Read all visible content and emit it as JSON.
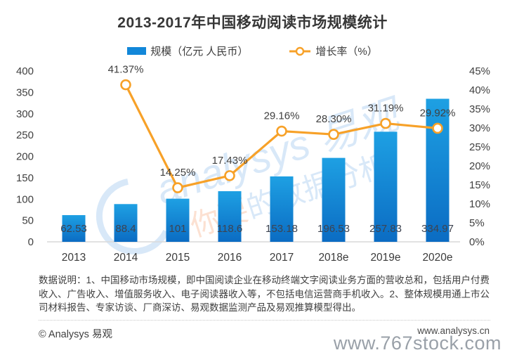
{
  "title": "2013-2017年中国移动阅读市场规模统计",
  "legend": {
    "bar_label": "规模（亿元 人民币）",
    "line_label": "增长率（%）"
  },
  "colors": {
    "bar_top": "#1EA0E3",
    "bar_bottom": "#0B6CC3",
    "legend_bar": "#1287d9",
    "line": "#F7A128",
    "marker_fill": "#FFFFFF",
    "label_text": "#404040",
    "baseline": "#d9d9d9",
    "watermark_blue": "rgba(168,203,239,0.45)",
    "watermark_orange": "rgba(247,184,148,0.42)"
  },
  "chart_data": {
    "type": "bar",
    "title": "2013-2017年中国移动阅读市场规模统计",
    "categories": [
      "2013",
      "2014",
      "2015",
      "2016",
      "2017",
      "2018e",
      "2019e",
      "2020e"
    ],
    "series": [
      {
        "name": "规模（亿元 人民币）",
        "type": "bar",
        "values": [
          62.53,
          88.4,
          101,
          118.6,
          153.18,
          196.53,
          257.83,
          334.97
        ]
      },
      {
        "name": "增长率（%）",
        "type": "line",
        "values": [
          null,
          41.37,
          14.25,
          17.43,
          29.16,
          28.3,
          31.19,
          29.92
        ]
      }
    ],
    "bar_labels": [
      "62.53",
      "88.4",
      "101",
      "118.6",
      "153.18",
      "196.53",
      "257.83",
      "334.97"
    ],
    "line_labels": [
      null,
      "41.37%",
      "14.25%",
      "17.43%",
      "29.16%",
      "28.30%",
      "31.19%",
      "29.92%"
    ],
    "left_axis": {
      "min": 0,
      "max": 400,
      "step": 50,
      "ticks": [
        "0",
        "50",
        "100",
        "150",
        "200",
        "250",
        "300",
        "350",
        "400"
      ]
    },
    "right_axis": {
      "min": 0,
      "max": 45,
      "step": 5,
      "ticks": [
        "0%",
        "5%",
        "10%",
        "15%",
        "20%",
        "25%",
        "30%",
        "35%",
        "40%",
        "45%"
      ]
    },
    "grid": false,
    "legend_position": "top",
    "xlabel": "",
    "ylabel": ""
  },
  "watermark": {
    "logo_text": "analysys 易观",
    "slogan_prefix": "你要",
    "slogan_suffix": "的数据分析"
  },
  "note": "数据说明：1、中国移动市场规模，即中国阅读企业在移动终端文字阅读业务方面的营收总和，包括用户付费收入、广告收入、增值服务收入、电子阅读器收入等，不包括电信运营商手机收入。2、整体规模用通上市公司材料报告、专家访谈、厂商深访、易观数据监测产品及易观推算模型得出。",
  "footer": {
    "copyright": "© Analysys 易观",
    "website": "www.analysys.cn",
    "watermark": "www.767stock.com"
  }
}
